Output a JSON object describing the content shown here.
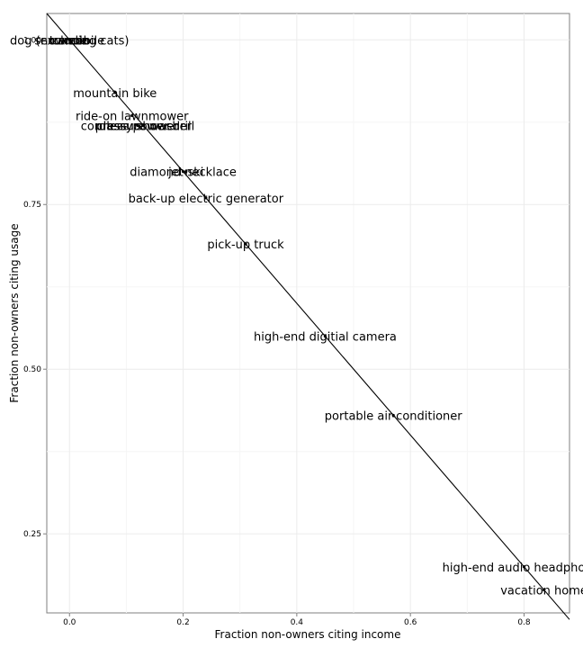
{
  "chart_data": {
    "type": "scatter",
    "title": "",
    "xlabel": "Fraction non-owners citing income",
    "ylabel": "Fraction non-owners citing usage",
    "xlim": [
      -0.04,
      0.88
    ],
    "ylim": [
      0.13,
      1.04
    ],
    "x_ticks": [
      0.0,
      0.2,
      0.4,
      0.6,
      0.8
    ],
    "x_tick_labels": [
      "0.0",
      "0.2",
      "0.4",
      "0.6",
      "0.8"
    ],
    "y_ticks": [
      0.25,
      0.5,
      0.75,
      1.0
    ],
    "y_tick_labels": [
      "0.25",
      "0.50",
      "0.75",
      "1.00"
    ],
    "grid": true,
    "reference_line": {
      "slope": -1,
      "intercept": 1
    },
    "points": [
      {
        "label": "dog (excluding cats)",
        "x": 0.0,
        "y": 1.0
      },
      {
        "label": "snowmobile",
        "x": 0.0,
        "y": 1.0
      },
      {
        "label": "tuxedo",
        "x": 0.0,
        "y": 1.0
      },
      {
        "label": "canoe",
        "x": 0.0,
        "y": 1.0
      },
      {
        "label": "mountain bike",
        "x": 0.08,
        "y": 0.92
      },
      {
        "label": "ride-on lawnmower",
        "x": 0.11,
        "y": 0.885
      },
      {
        "label": "cordless power drill",
        "x": 0.12,
        "y": 0.87
      },
      {
        "label": "pressure washer",
        "x": 0.13,
        "y": 0.87
      },
      {
        "label": "classy shower",
        "x": 0.12,
        "y": 0.87
      },
      {
        "label": "diamond necklace",
        "x": 0.2,
        "y": 0.8
      },
      {
        "label": "jet-ski",
        "x": 0.205,
        "y": 0.8
      },
      {
        "label": "back-up electric generator",
        "x": 0.24,
        "y": 0.76
      },
      {
        "label": "pick-up truck",
        "x": 0.31,
        "y": 0.69
      },
      {
        "label": "high-end digitial camera",
        "x": 0.45,
        "y": 0.55
      },
      {
        "label": "portable air-conditioner",
        "x": 0.57,
        "y": 0.43
      },
      {
        "label": "high-end audio headphones",
        "x": 0.8,
        "y": 0.2
      },
      {
        "label": "vacation home",
        "x": 0.835,
        "y": 0.165
      }
    ]
  }
}
